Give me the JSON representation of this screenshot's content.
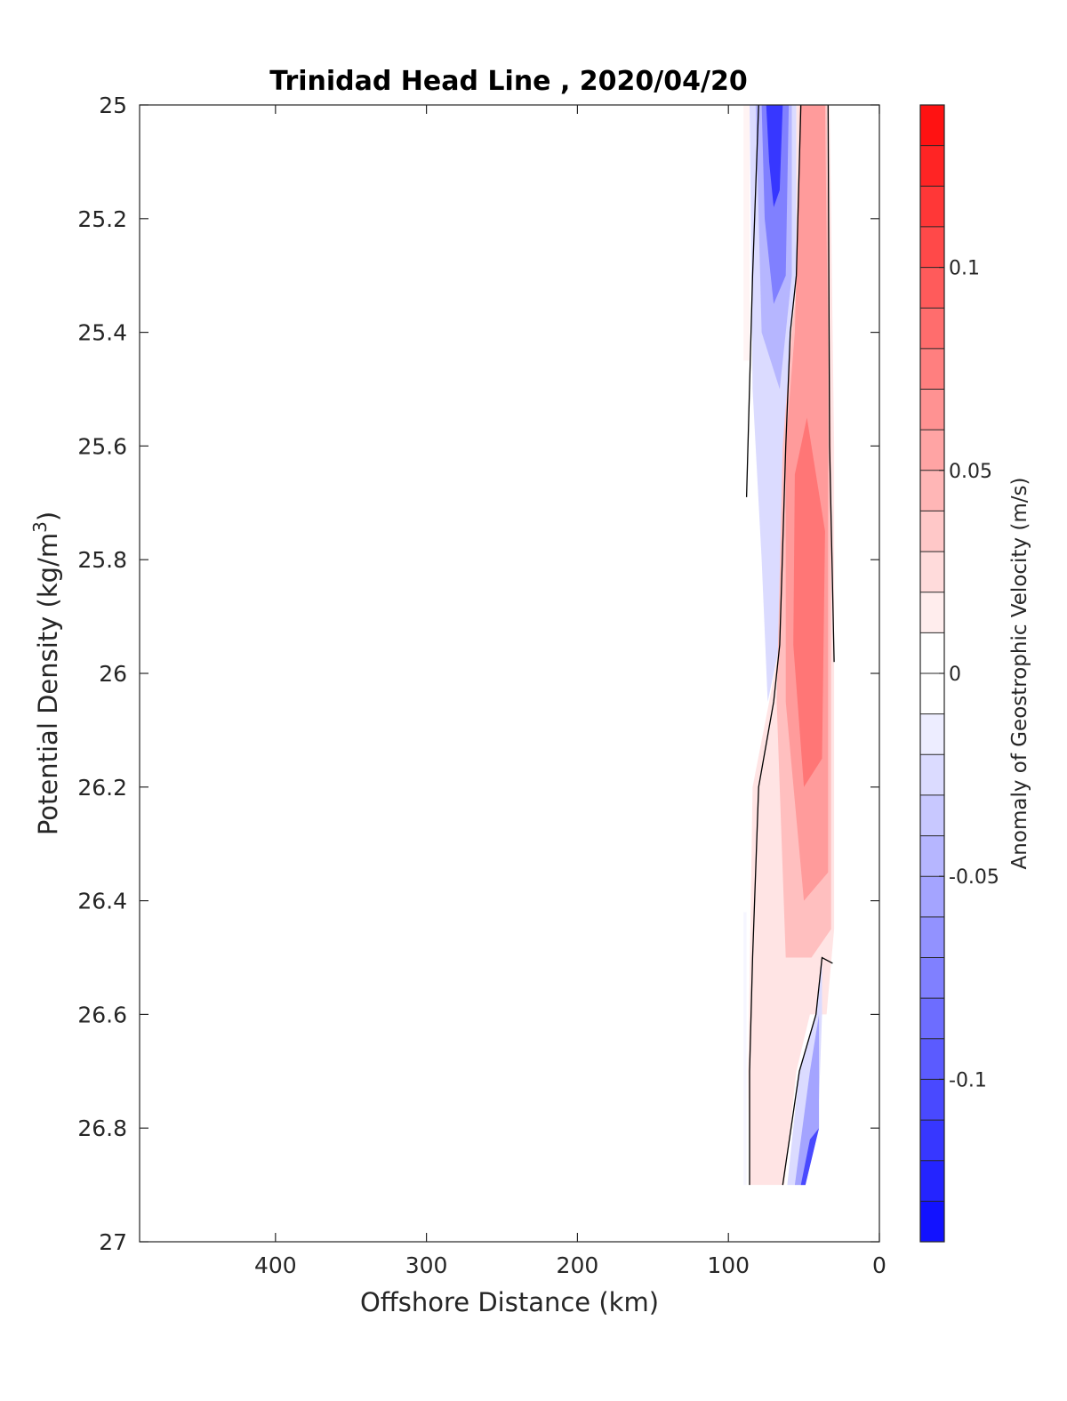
{
  "chart_data": {
    "type": "heatmap",
    "title": "Trinidad Head Line , 2020/04/20",
    "xlabel": "Offshore Distance (km)",
    "ylabel": "Potential Density (kg/m",
    "ylabel_sup": "3",
    "ylabel_close": ")",
    "xlim": [
      490,
      0
    ],
    "ylim": [
      25,
      27
    ],
    "x_ticks": [
      400,
      300,
      200,
      100,
      0
    ],
    "x_tick_labels": [
      "400",
      "300",
      "200",
      "100",
      "0"
    ],
    "y_ticks": [
      25,
      25.2,
      25.4,
      25.6,
      25.8,
      26,
      26.2,
      26.4,
      26.6,
      26.8,
      27
    ],
    "y_tick_labels": [
      "25",
      "25.2",
      "25.4",
      "25.6",
      "25.8",
      "26",
      "26.2",
      "26.4",
      "26.6",
      "26.8",
      "27"
    ],
    "grid": false,
    "colorbar": {
      "label": "Anomaly of Geostrophic Velocity (m/s)",
      "range": [
        -0.14,
        0.14
      ],
      "levels": 28,
      "ticks": [
        0.1,
        0.05,
        0,
        -0.05,
        -0.1
      ],
      "tick_labels": [
        "0.1",
        "0.05",
        "0",
        "-0.05",
        "-0.1"
      ],
      "positive_color": "#ff0000",
      "negative_color": "#0000ff",
      "zero_color": "#ffffff"
    },
    "fields": [
      {
        "name": "offshore_weak_positive",
        "value": 0.006,
        "polygon": [
          [
            90,
            25
          ],
          [
            86,
            25
          ],
          [
            86,
            25.45
          ],
          [
            90,
            25.45
          ]
        ]
      },
      {
        "name": "upper_negative_jet_outer",
        "value": -0.02,
        "polygon": [
          [
            86,
            25
          ],
          [
            55,
            25
          ],
          [
            55,
            25.3
          ],
          [
            59,
            25.4
          ],
          [
            62,
            25.6
          ],
          [
            66,
            25.95
          ],
          [
            74,
            26.05
          ],
          [
            78,
            25.8
          ],
          [
            84,
            25.5
          ]
        ]
      },
      {
        "name": "upper_negative_jet_mid",
        "value": -0.04,
        "polygon": [
          [
            82,
            25
          ],
          [
            58,
            25
          ],
          [
            58,
            25.3
          ],
          [
            66,
            25.5
          ],
          [
            78,
            25.4
          ]
        ]
      },
      {
        "name": "upper_negative_jet_core",
        "value": -0.07,
        "polygon": [
          [
            78,
            25
          ],
          [
            60,
            25
          ],
          [
            62,
            25.3
          ],
          [
            70,
            25.35
          ],
          [
            76,
            25.2
          ]
        ]
      },
      {
        "name": "upper_negative_jet_max",
        "value": -0.11,
        "polygon": [
          [
            75,
            25
          ],
          [
            64,
            25
          ],
          [
            66,
            25.15
          ],
          [
            70,
            25.18
          ],
          [
            73,
            25.1
          ]
        ]
      },
      {
        "name": "positive_band_outer",
        "value": 0.015,
        "polygon": [
          [
            55,
            25
          ],
          [
            33,
            25
          ],
          [
            30,
            25.6
          ],
          [
            30,
            26.45
          ],
          [
            35,
            26.6
          ],
          [
            46,
            26.6
          ],
          [
            55,
            26.7
          ],
          [
            63,
            26.9
          ],
          [
            86,
            26.9
          ],
          [
            87,
            26.7
          ],
          [
            84,
            26.2
          ],
          [
            73,
            26.05
          ],
          [
            66,
            25.95
          ],
          [
            62,
            25.6
          ],
          [
            59,
            25.4
          ],
          [
            55,
            25.3
          ]
        ]
      },
      {
        "name": "positive_band_mid",
        "value": 0.035,
        "polygon": [
          [
            53,
            25
          ],
          [
            35,
            25
          ],
          [
            32,
            25.6
          ],
          [
            32,
            26.45
          ],
          [
            45,
            26.5
          ],
          [
            62,
            26.5
          ],
          [
            68,
            26.05
          ],
          [
            64,
            25.6
          ],
          [
            58,
            25.4
          ],
          [
            54,
            25.3
          ]
        ]
      },
      {
        "name": "positive_band_inner",
        "value": 0.055,
        "polygon": [
          [
            52,
            25
          ],
          [
            36,
            25
          ],
          [
            34,
            25.45
          ],
          [
            34,
            26.35
          ],
          [
            50,
            26.4
          ],
          [
            62,
            26.05
          ],
          [
            62,
            25.6
          ],
          [
            56,
            25.4
          ]
        ]
      },
      {
        "name": "positive_band_core",
        "value": 0.075,
        "polygon": [
          [
            48,
            25.55
          ],
          [
            36,
            25.75
          ],
          [
            38,
            26.15
          ],
          [
            50,
            26.2
          ],
          [
            57,
            25.95
          ],
          [
            56,
            25.65
          ]
        ]
      },
      {
        "name": "coastal_negative_outer",
        "value": -0.02,
        "polygon": [
          [
            38,
            26.5
          ],
          [
            42,
            26.6
          ],
          [
            53,
            26.7
          ],
          [
            61,
            26.9
          ],
          [
            49,
            26.9
          ],
          [
            40,
            26.75
          ],
          [
            38,
            26.6
          ]
        ]
      },
      {
        "name": "coastal_negative_mid",
        "value": -0.05,
        "polygon": [
          [
            40,
            26.6
          ],
          [
            46,
            26.7
          ],
          [
            56,
            26.9
          ],
          [
            49,
            26.9
          ],
          [
            40,
            26.8
          ]
        ]
      },
      {
        "name": "coastal_negative_core",
        "value": -0.1,
        "polygon": [
          [
            40,
            26.8
          ],
          [
            46,
            26.82
          ],
          [
            52,
            26.9
          ],
          [
            49,
            26.9
          ]
        ]
      },
      {
        "name": "lower_offshore_negative",
        "value": -0.005,
        "polygon": [
          [
            90,
            26.42
          ],
          [
            88,
            26.42
          ],
          [
            88,
            26.9
          ],
          [
            90,
            26.9
          ]
        ]
      }
    ],
    "zero_contours": [
      [
        [
          80,
          25
        ],
        [
          84,
          25.3
        ],
        [
          88,
          25.69
        ]
      ],
      [
        [
          52,
          25
        ],
        [
          55,
          25.3
        ],
        [
          59,
          25.4
        ],
        [
          62,
          25.6
        ],
        [
          66,
          25.95
        ],
        [
          70,
          26.05
        ],
        [
          80,
          26.2
        ],
        [
          84,
          26.5
        ],
        [
          86,
          26.7
        ],
        [
          86,
          26.9
        ]
      ],
      [
        [
          34,
          25
        ],
        [
          33,
          25.6
        ],
        [
          30,
          25.98
        ]
      ],
      [
        [
          31,
          26.51
        ],
        [
          38,
          26.5
        ],
        [
          42,
          26.6
        ],
        [
          53,
          26.7
        ],
        [
          64,
          26.9
        ]
      ]
    ]
  }
}
